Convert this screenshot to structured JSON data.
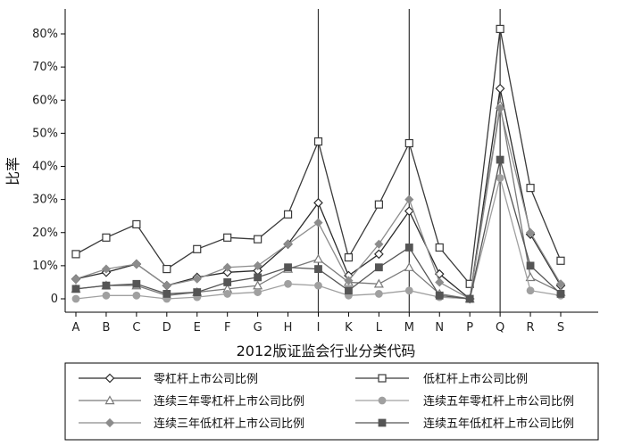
{
  "chart_data": {
    "type": "line",
    "title": "",
    "xlabel": "2012版证监会行业分类代码",
    "ylabel": "比率",
    "ylim": [
      0,
      0.85
    ],
    "yticks": [
      "0",
      "10%",
      "20%",
      "30%",
      "40%",
      "50%",
      "60%",
      "70%",
      "80%"
    ],
    "categories": [
      "A",
      "B",
      "C",
      "D",
      "E",
      "F",
      "G",
      "H",
      "I",
      "K",
      "L",
      "M",
      "N",
      "P",
      "Q",
      "R",
      "S"
    ],
    "highlight_categories": [
      "I",
      "M",
      "Q"
    ],
    "grid": false,
    "legend_position": "bottom",
    "series": [
      {
        "name": "零杠杆上市公司比例",
        "color": "#2b2b2b",
        "marker": "diamond-open",
        "values": [
          0.06,
          0.08,
          0.105,
          0.04,
          0.065,
          0.08,
          0.085,
          0.165,
          0.29,
          0.07,
          0.135,
          0.265,
          0.075,
          0.0,
          0.635,
          0.195,
          0.04
        ]
      },
      {
        "name": "低杠杆上市公司比例",
        "color": "#3a3a3a",
        "marker": "square-open",
        "values": [
          0.135,
          0.185,
          0.225,
          0.09,
          0.15,
          0.185,
          0.18,
          0.255,
          0.475,
          0.125,
          0.285,
          0.47,
          0.155,
          0.045,
          0.815,
          0.335,
          0.115
        ]
      },
      {
        "name": "连续三年零杠杆上市公司比例",
        "color": "#7a7a7a",
        "marker": "triangle-open",
        "values": [
          0.03,
          0.04,
          0.04,
          0.01,
          0.02,
          0.03,
          0.04,
          0.09,
          0.12,
          0.05,
          0.045,
          0.095,
          0.015,
          0.0,
          0.585,
          0.065,
          0.02
        ]
      },
      {
        "name": "连续五年零杠杆上市公司比例",
        "color": "#a0a0a0",
        "marker": "circle",
        "values": [
          0.0,
          0.01,
          0.01,
          0.0,
          0.005,
          0.015,
          0.02,
          0.045,
          0.04,
          0.01,
          0.015,
          0.025,
          0.005,
          0.0,
          0.365,
          0.025,
          0.01
        ]
      },
      {
        "name": "连续三年低杠杆上市公司比例",
        "color": "#8c8c8c",
        "marker": "diamond",
        "values": [
          0.06,
          0.09,
          0.105,
          0.04,
          0.06,
          0.095,
          0.1,
          0.165,
          0.23,
          0.055,
          0.165,
          0.3,
          0.05,
          0.0,
          0.575,
          0.2,
          0.045
        ]
      },
      {
        "name": "连续五年低杠杆上市公司比例",
        "color": "#555555",
        "marker": "square",
        "values": [
          0.03,
          0.04,
          0.045,
          0.015,
          0.02,
          0.05,
          0.065,
          0.095,
          0.09,
          0.025,
          0.095,
          0.155,
          0.01,
          0.0,
          0.42,
          0.1,
          0.015
        ]
      }
    ]
  }
}
